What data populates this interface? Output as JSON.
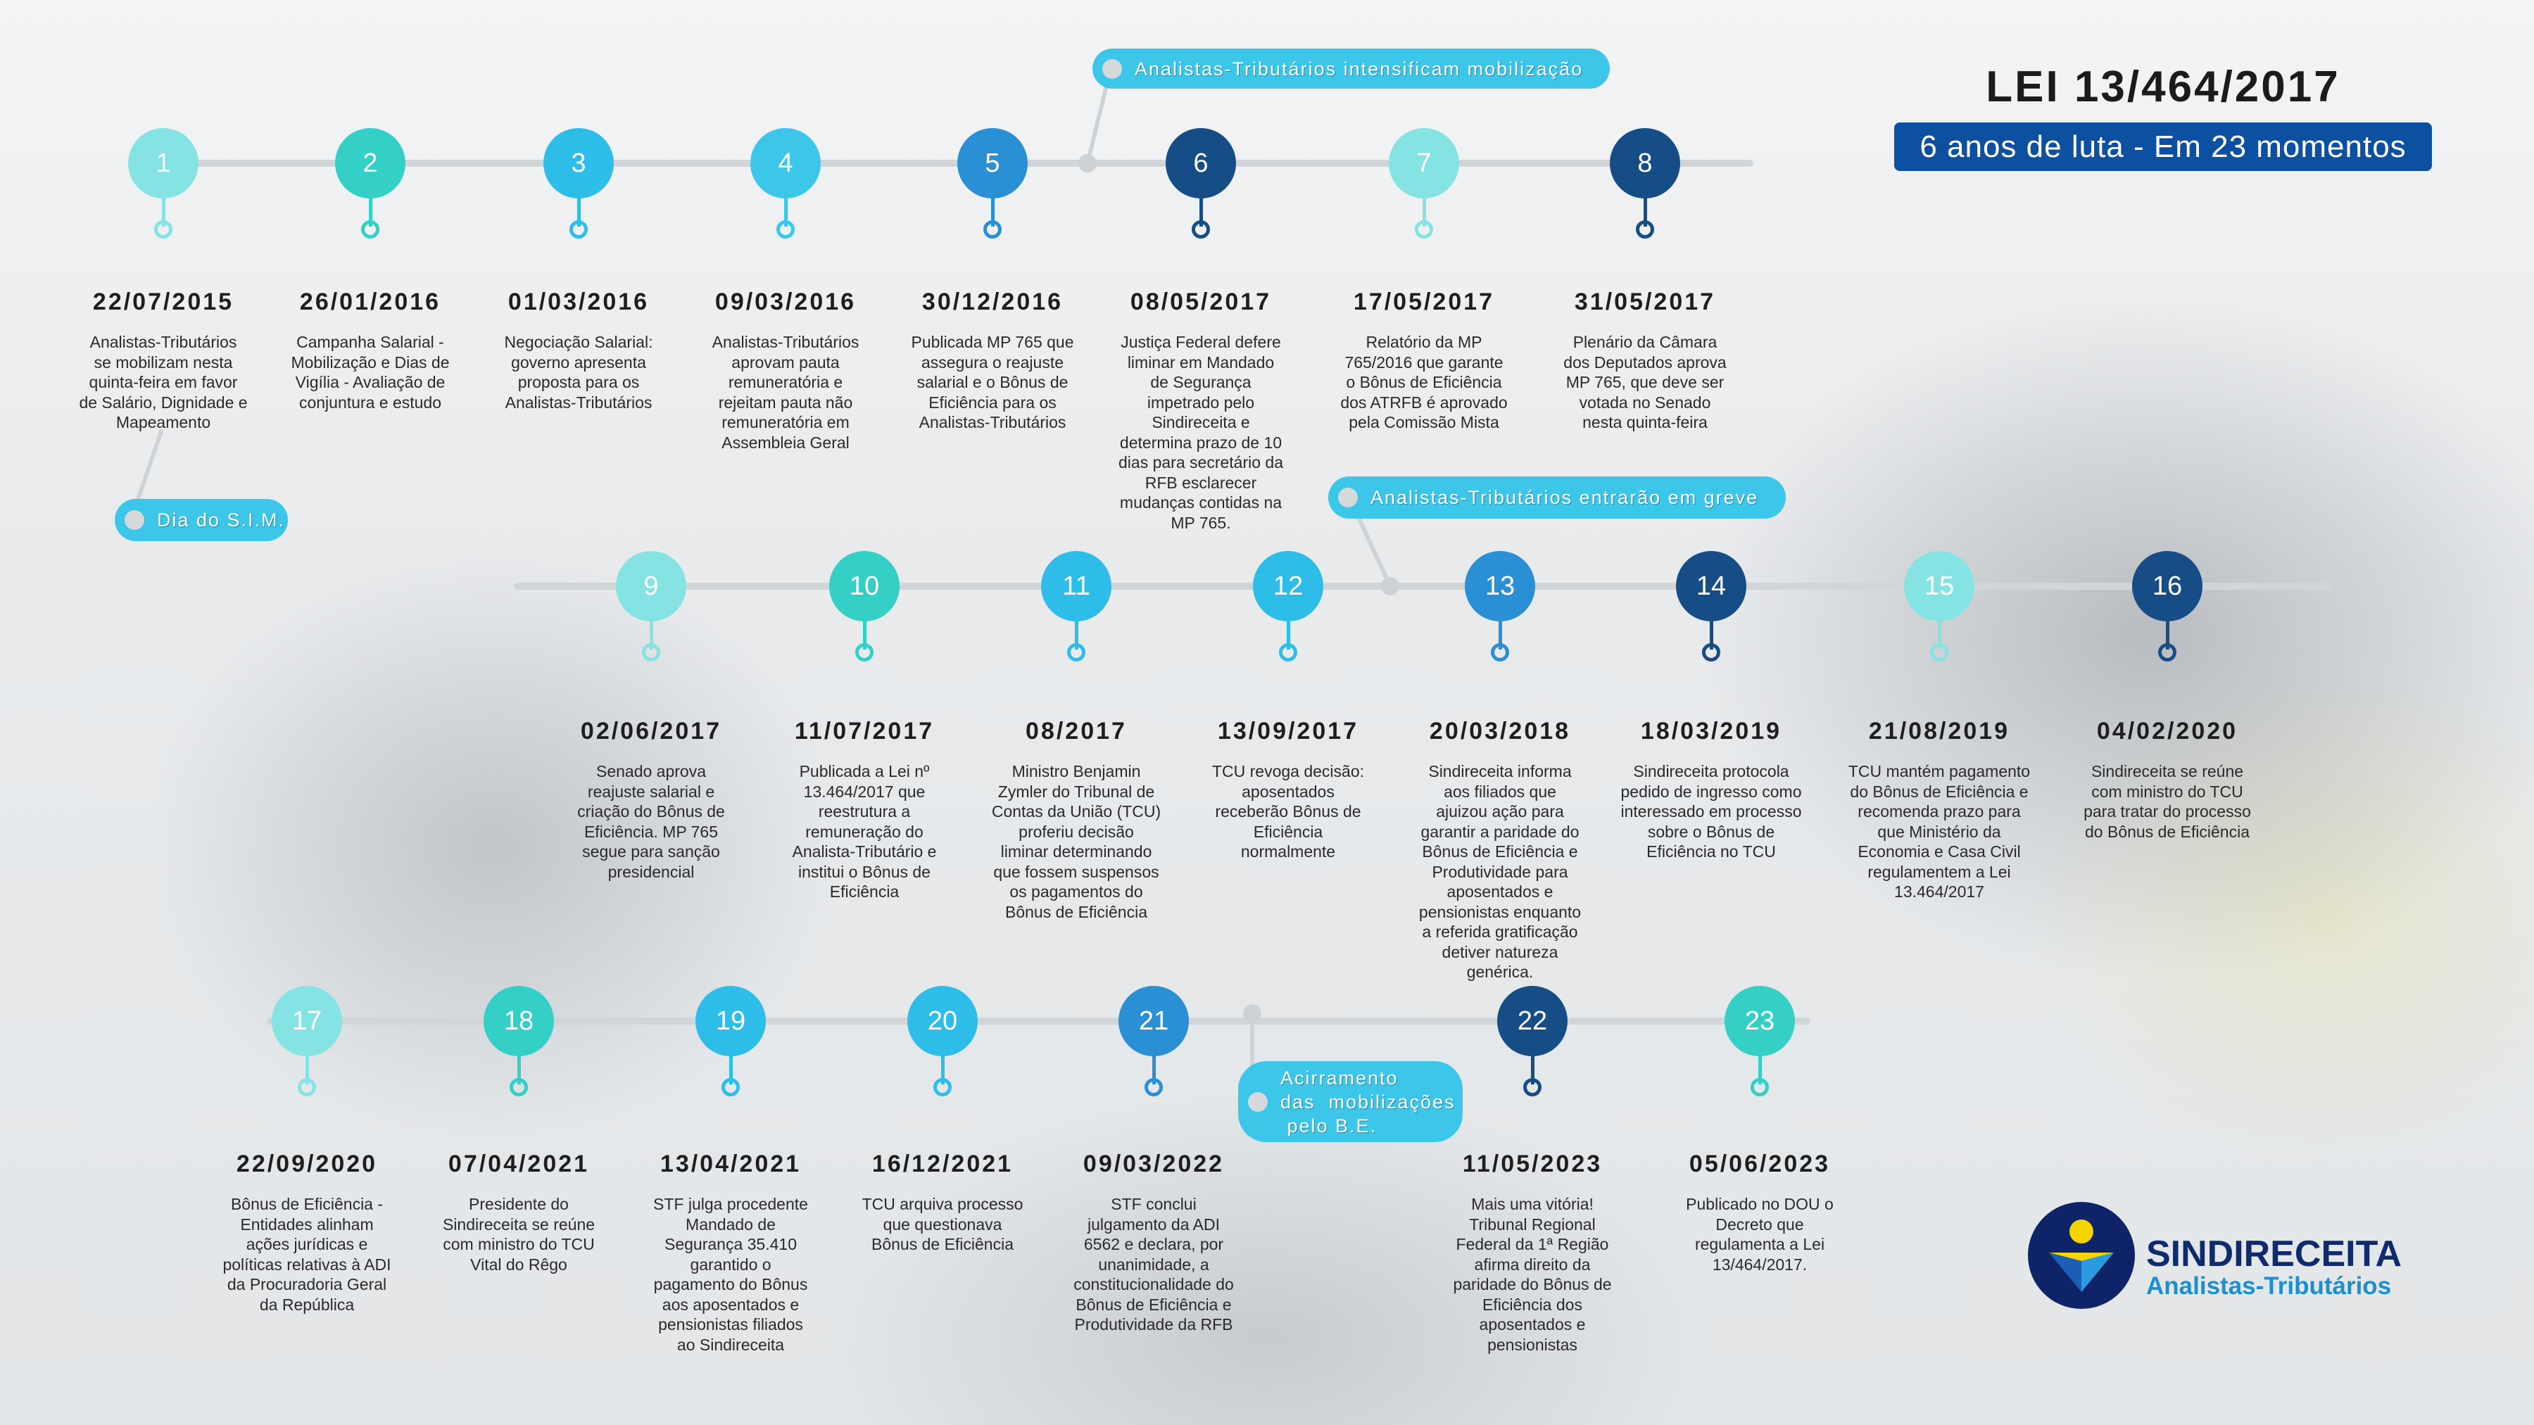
{
  "header": {
    "title": "LEI 13/464/2017",
    "subtitle": "6 anos de luta - Em 23 momentos"
  },
  "colors": {
    "aqua_light": "#86e3e3",
    "teal": "#34cfc6",
    "cyan": "#2dbde8",
    "blue": "#2b8fd6",
    "navy": "#174d87",
    "pill": "#3cc6ea",
    "subtitle_bg": "#0d4fa0"
  },
  "callouts": [
    {
      "text": "Analistas-Tributários intensificam mobilização"
    },
    {
      "text": "Dia do S.I.M."
    },
    {
      "text": "Analistas-Tributários entrarão em greve"
    },
    {
      "text": "Acirramento\ndas  mobilizações\n pelo B.E."
    }
  ],
  "rows": [
    {
      "events": [
        {
          "n": "1",
          "color": "#86e3e3",
          "date": "22/07/2015",
          "desc": "Analistas-Tributários\nse mobilizam nesta\nquinta-feira em favor\nde Salário, Dignidade e\nMapeamento"
        },
        {
          "n": "2",
          "color": "#34cfc6",
          "date": "26/01/2016",
          "desc": "Campanha Salarial -\nMobilização e Dias de\nVigília - Avaliação de\nconjuntura e estudo"
        },
        {
          "n": "3",
          "color": "#2dbde8",
          "date": "01/03/2016",
          "desc": "Negociação Salarial:\ngoverno apresenta\nproposta para os\nAnalistas-Tributários"
        },
        {
          "n": "4",
          "color": "#3cc6ea",
          "date": "09/03/2016",
          "desc": "Analistas-Tributários\naprovam pauta\nremuneratória e\nrejeitam pauta não\nremuneratória em\nAssembleia Geral"
        },
        {
          "n": "5",
          "color": "#2b8fd6",
          "date": "30/12/2016",
          "desc": "Publicada MP 765 que\nassegura o reajuste\nsalarial e o Bônus de\nEficiência para os\nAnalistas-Tributários"
        },
        {
          "n": "6",
          "color": "#174d87",
          "date": "08/05/2017",
          "desc": "Justiça Federal defere\nliminar em Mandado\nde Segurança\nimpetrado pelo\nSindireceita e\ndetermina prazo de 10\ndias para secretário da\nRFB esclarecer\nmudanças contidas na\nMP 765."
        },
        {
          "n": "7",
          "color": "#86e3e3",
          "date": "17/05/2017",
          "desc": "Relatório da MP\n765/2016 que garante\no Bônus de Eficiência\ndos ATRFB é aprovado\npela Comissão Mista"
        },
        {
          "n": "8",
          "color": "#174d87",
          "date": "31/05/2017",
          "desc": "Plenário da Câmara\ndos Deputados aprova\nMP 765, que deve ser\nvotada no Senado\nnesta quinta-feira"
        }
      ]
    },
    {
      "events": [
        {
          "n": "9",
          "color": "#86e3e3",
          "date": "02/06/2017",
          "desc": "Senado aprova\nreajuste salarial e\ncriação do Bônus de\nEficiência. MP 765\nsegue para sanção\npresidencial"
        },
        {
          "n": "10",
          "color": "#34cfc6",
          "date": "11/07/2017",
          "desc": "Publicada a Lei nº\n13.464/2017 que\nreestrutura a\nremuneração do\nAnalista-Tributário e\ninstitui o Bônus de\nEficiência"
        },
        {
          "n": "11",
          "color": "#2dbde8",
          "date": "08/2017",
          "desc": "Ministro Benjamin\nZymler do Tribunal de\nContas da União (TCU)\nproferiu decisão\nliminar determinando\nque fossem suspensos\nos pagamentos do\nBônus de Eficiência"
        },
        {
          "n": "12",
          "color": "#2dbde8",
          "date": "13/09/2017",
          "desc": "TCU revoga decisão:\naposentados\nreceberão Bônus de\nEficiência\nnormalmente"
        },
        {
          "n": "13",
          "color": "#2b8fd6",
          "date": "20/03/2018",
          "desc": "Sindireceita informa\naos filiados que\najuizou ação para\ngarantir a paridade do\nBônus de Eficiência e\nProdutividade para\naposentados e\npensionistas enquanto\na referida gratificação\ndetiver natureza\ngenérica."
        },
        {
          "n": "14",
          "color": "#174d87",
          "date": "18/03/2019",
          "desc": "Sindireceita protocola\npedido de ingresso como\ninteressado em processo\nsobre o Bônus de\nEficiência no TCU"
        },
        {
          "n": "15",
          "color": "#86e3e3",
          "date": "21/08/2019",
          "desc": "TCU mantém pagamento\ndo Bônus de Eficiência e\nrecomenda prazo para\nque Ministério da\nEconomia e Casa Civil\nregulamentem a Lei\n13.464/2017"
        },
        {
          "n": "16",
          "color": "#174d87",
          "date": "04/02/2020",
          "desc": "Sindireceita se reúne\ncom ministro do TCU\npara tratar do processo\ndo Bônus de Eficiência"
        }
      ]
    },
    {
      "events": [
        {
          "n": "17",
          "color": "#86e3e3",
          "date": "22/09/2020",
          "desc": "Bônus de Eficiência -\nEntidades alinham\nações jurídicas e\npolíticas relativas à ADI\nda Procuradoria Geral\nda República"
        },
        {
          "n": "18",
          "color": "#34cfc6",
          "date": "07/04/2021",
          "desc": "Presidente do\nSindireceita se reúne\ncom ministro do TCU\nVital do Rêgo"
        },
        {
          "n": "19",
          "color": "#2dbde8",
          "date": "13/04/2021",
          "desc": "STF julga procedente\nMandado de\nSegurança 35.410\ngarantido o\npagamento do Bônus\naos aposentados e\npensionistas filiados\nao Sindireceita"
        },
        {
          "n": "20",
          "color": "#2dbde8",
          "date": "16/12/2021",
          "desc": "TCU arquiva processo\nque questionava\nBônus de Eficiência"
        },
        {
          "n": "21",
          "color": "#2b8fd6",
          "date": "09/03/2022",
          "desc": "STF conclui\njulgamento da ADI\n6562 e declara, por\nunanimidade, a\nconstitucionalidade do\nBônus de Eficiência e\nProdutividade da RFB"
        },
        {
          "n": "22",
          "color": "#174d87",
          "date": "11/05/2023",
          "desc": "Mais uma vitória!\nTribunal Regional\nFederal da 1ª Região\nafirma direito da\nparidade do Bônus de\nEficiência dos\naposentados e\npensionistas"
        },
        {
          "n": "23",
          "color": "#34cfc6",
          "date": "05/06/2023",
          "desc": "Publicado no DOU o\nDecreto que\nregulamenta a Lei\n13/464/2017."
        }
      ]
    }
  ],
  "logo": {
    "name": "SINDIRECEITA",
    "tagline": "Analistas-Tributários"
  }
}
